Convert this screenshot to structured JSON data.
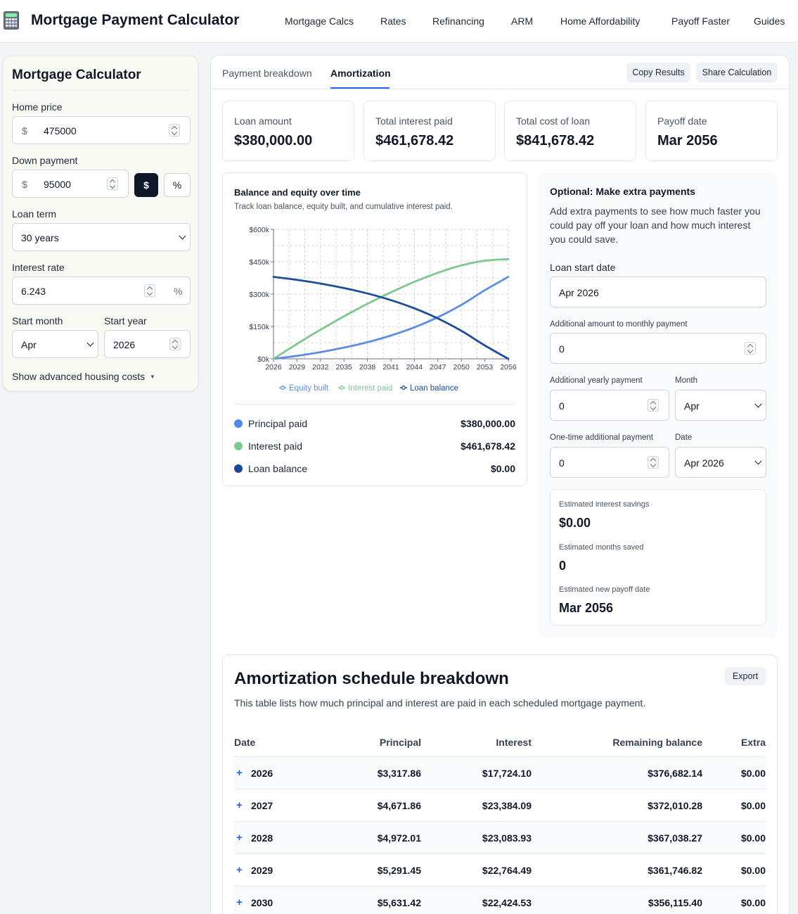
{
  "header": {
    "title": "Mortgage Payment Calculator",
    "nav": [
      "Mortgage Calcs",
      "Rates",
      "Refinancing",
      "ARM",
      "Home Affordability",
      "Payoff Faster",
      "Guides"
    ]
  },
  "calculator": {
    "title": "Mortgage Calculator",
    "home_price": {
      "label": "Home price",
      "prefix": "$",
      "value": "475000"
    },
    "down_payment": {
      "label": "Down payment",
      "prefix": "$",
      "value": "95000",
      "mode_dollar": "$",
      "mode_percent": "%"
    },
    "loan_term": {
      "label": "Loan term",
      "value": "30 years"
    },
    "interest_rate": {
      "label": "Interest rate",
      "value": "6.243",
      "suffix": "%"
    },
    "start_month": {
      "label": "Start month",
      "value": "Apr"
    },
    "start_year": {
      "label": "Start year",
      "value": "2026"
    },
    "advanced": "Show advanced housing costs",
    "advanced_caret": "▼"
  },
  "tabs": {
    "items": [
      "Payment breakdown",
      "Amortization"
    ],
    "active": "Amortization",
    "copy": "Copy Results",
    "share": "Share Calculation"
  },
  "stats": [
    {
      "label": "Loan amount",
      "value": "$380,000.00"
    },
    {
      "label": "Total interest paid",
      "value": "$461,678.42"
    },
    {
      "label": "Total cost of loan",
      "value": "$841,678.42"
    },
    {
      "label": "Payoff date",
      "value": "Mar 2056"
    }
  ],
  "chart": {
    "title": "Balance and equity over time",
    "subtitle": "Track loan balance, equity built, and cumulative interest paid."
  },
  "chart_data": {
    "type": "line",
    "x": [
      2026,
      2029,
      2032,
      2035,
      2038,
      2041,
      2044,
      2047,
      2050,
      2053,
      2056
    ],
    "x_ticks": [
      "2026",
      "2029",
      "2032",
      "2035",
      "2038",
      "2041",
      "2044",
      "2047",
      "2050",
      "2053",
      "2056"
    ],
    "y_ticks": [
      "$0k",
      "$150k",
      "$300k",
      "$450k",
      "$600k"
    ],
    "ylim": [
      0,
      600
    ],
    "grid": true,
    "legend_position": "bottom",
    "series": [
      {
        "name": "Equity built",
        "color": "#5b8fe6",
        "values": [
          0,
          14,
          31,
          52,
          77,
          108,
          146,
          193,
          250,
          318,
          380
        ]
      },
      {
        "name": "Interest paid",
        "color": "#7cc98f",
        "values": [
          0,
          69,
          135,
          197,
          255,
          308,
          357,
          399,
          433,
          455,
          462
        ]
      },
      {
        "name": "Loan balance",
        "color": "#1f4d99",
        "values": [
          380,
          366,
          349,
          328,
          303,
          272,
          234,
          187,
          130,
          62,
          0
        ]
      }
    ]
  },
  "summary": [
    {
      "label": "Principal paid",
      "value": "$380,000.00",
      "color": "#4f8ae6"
    },
    {
      "label": "Interest paid",
      "value": "$461,678.42",
      "color": "#7cc98f"
    },
    {
      "label": "Loan balance",
      "value": "$0.00",
      "color": "#1a4a94"
    }
  ],
  "extra": {
    "title": "Optional: Make extra payments",
    "description": "Add extra payments to see how much faster you could pay off your loan and how much interest you could save.",
    "start_date": {
      "label": "Loan start date",
      "value": "Apr 2026"
    },
    "monthly": {
      "label": "Additional amount to monthly payment",
      "value": "0"
    },
    "yearly": {
      "label": "Additional yearly payment",
      "value": "0"
    },
    "yearly_month": {
      "label": "Month",
      "value": "Apr"
    },
    "onetime": {
      "label": "One-time additional payment",
      "value": "0"
    },
    "onetime_date": {
      "label": "Date",
      "value": "Apr 2026"
    },
    "savings_label": "Estimated interest savings",
    "savings_value": "$0.00",
    "months_label": "Estimated months saved",
    "months_value": "0",
    "payoff_label": "Estimated new payoff date",
    "payoff_value": "Mar 2056"
  },
  "schedule": {
    "title": "Amortization schedule breakdown",
    "subtitle": "This table lists how much principal and interest are paid in each scheduled mortgage payment.",
    "export": "Export",
    "columns": [
      "Date",
      "Principal",
      "Interest",
      "Remaining balance",
      "Extra"
    ],
    "expand": "+",
    "rows": [
      {
        "date": "2026",
        "principal": "$3,317.86",
        "interest": "$17,724.10",
        "balance": "$376,682.14",
        "extra": "$0.00"
      },
      {
        "date": "2027",
        "principal": "$4,671.86",
        "interest": "$23,384.09",
        "balance": "$372,010.28",
        "extra": "$0.00"
      },
      {
        "date": "2028",
        "principal": "$4,972.01",
        "interest": "$23,083.93",
        "balance": "$367,038.27",
        "extra": "$0.00"
      },
      {
        "date": "2029",
        "principal": "$5,291.45",
        "interest": "$22,764.49",
        "balance": "$361,746.82",
        "extra": "$0.00"
      },
      {
        "date": "2030",
        "principal": "$5,631.42",
        "interest": "$22,424.53",
        "balance": "$356,115.40",
        "extra": "$0.00"
      }
    ]
  }
}
